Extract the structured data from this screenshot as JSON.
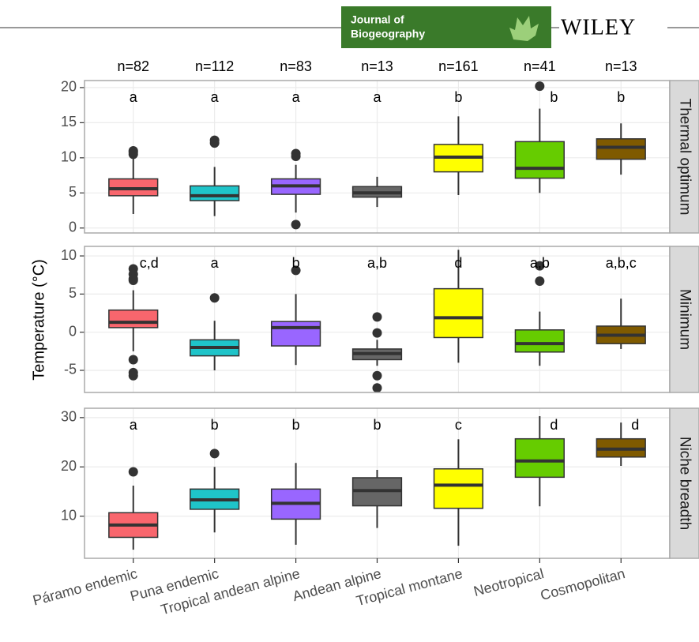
{
  "header": {
    "journal": [
      "Journal of",
      "Biogeography"
    ],
    "publisher": "WILEY"
  },
  "y_label": "Temperature (°C)",
  "chart_data": [
    {
      "type": "box",
      "facet": "Thermal optimum",
      "ylim": [
        -0.7,
        21
      ],
      "yticks": [
        0,
        5,
        10,
        15,
        20
      ],
      "grid": true,
      "n_labels": [
        "n=82",
        "n=112",
        "n=83",
        "n=13",
        "n=161",
        "n=41",
        "n=13"
      ],
      "group_letters": [
        "a",
        "a",
        "a",
        "a",
        "b",
        "b",
        "b"
      ],
      "boxes": [
        {
          "color": "#f8666d",
          "min": 2.0,
          "q1": 4.6,
          "median": 5.6,
          "q3": 7.0,
          "max": 10.0,
          "outliers": [
            10.5,
            11.0,
            10.8
          ]
        },
        {
          "color": "#1fc4c9",
          "min": 1.7,
          "q1": 3.9,
          "median": 4.6,
          "q3": 6.0,
          "max": 8.7,
          "outliers": [
            12.1,
            12.5
          ]
        },
        {
          "color": "#9966ff",
          "min": 2.2,
          "q1": 4.8,
          "median": 6.0,
          "q3": 7.0,
          "max": 9.0,
          "outliers": [
            0.5,
            10.2,
            10.6
          ]
        },
        {
          "color": "#666666",
          "min": 3.0,
          "q1": 4.4,
          "median": 5.0,
          "q3": 5.9,
          "max": 7.3,
          "outliers": []
        },
        {
          "color": "#ffff00",
          "min": 4.7,
          "q1": 8.0,
          "median": 10.1,
          "q3": 11.9,
          "max": 15.9,
          "outliers": []
        },
        {
          "color": "#66cc00",
          "min": 5.0,
          "q1": 7.1,
          "median": 8.5,
          "q3": 12.3,
          "max": 17.0,
          "outliers": [
            20.2
          ]
        },
        {
          "color": "#7f5a00",
          "min": 7.6,
          "q1": 9.8,
          "median": 11.5,
          "q3": 12.7,
          "max": 14.9,
          "outliers": []
        }
      ]
    },
    {
      "type": "box",
      "facet": "Minimum",
      "ylim": [
        -7.9,
        11.25
      ],
      "yticks": [
        -5,
        0,
        5,
        10
      ],
      "grid": true,
      "group_letters": [
        "c,d",
        "a",
        "b",
        "a,b",
        "d",
        "a,b",
        "a,b,c"
      ],
      "boxes": [
        {
          "color": "#f8666d",
          "min": -2.5,
          "q1": 0.6,
          "median": 1.3,
          "q3": 2.9,
          "max": 5.5,
          "outliers": [
            8.3,
            7.6,
            7.0,
            6.8,
            -3.6,
            -5.3,
            -5.7
          ]
        },
        {
          "color": "#1fc4c9",
          "min": -5.0,
          "q1": -3.1,
          "median": -2.0,
          "q3": -1.0,
          "max": 1.5,
          "outliers": [
            4.5
          ]
        },
        {
          "color": "#9966ff",
          "min": -4.3,
          "q1": -1.8,
          "median": 0.6,
          "q3": 1.4,
          "max": 5.0,
          "outliers": [
            8.1
          ]
        },
        {
          "color": "#666666",
          "min": -4.4,
          "q1": -3.6,
          "median": -2.8,
          "q3": -2.2,
          "max": -1.0,
          "outliers": [
            2.0,
            -0.1,
            -5.7,
            -7.3
          ]
        },
        {
          "color": "#ffff00",
          "min": -4.0,
          "q1": -0.7,
          "median": 1.9,
          "q3": 5.7,
          "max": 10.8,
          "outliers": []
        },
        {
          "color": "#66cc00",
          "min": -4.4,
          "q1": -2.6,
          "median": -1.5,
          "q3": 0.3,
          "max": 2.7,
          "outliers": [
            6.7,
            8.7
          ]
        },
        {
          "color": "#7f5a00",
          "min": -2.2,
          "q1": -1.5,
          "median": -0.4,
          "q3": 0.8,
          "max": 4.4,
          "outliers": []
        }
      ]
    },
    {
      "type": "box",
      "facet": "Niche breadth",
      "ylim": [
        1.45,
        31.9
      ],
      "yticks": [
        10,
        20,
        30
      ],
      "grid": true,
      "group_letters": [
        "a",
        "b",
        "b",
        "b",
        "c",
        "d",
        "d"
      ],
      "categories": [
        "Páramo endemic",
        "Puna endemic",
        "Tropical andean alpine",
        "Andean alpine",
        "Tropical montane",
        "Neotropical",
        "Cosmopolitan"
      ],
      "boxes": [
        {
          "color": "#f8666d",
          "min": 3.2,
          "q1": 5.7,
          "median": 8.2,
          "q3": 10.7,
          "max": 16.2,
          "outliers": [
            19.0
          ]
        },
        {
          "color": "#1fc4c9",
          "min": 6.7,
          "q1": 11.4,
          "median": 13.3,
          "q3": 15.5,
          "max": 20.0,
          "outliers": [
            22.7
          ]
        },
        {
          "color": "#9966ff",
          "min": 4.2,
          "q1": 9.4,
          "median": 12.6,
          "q3": 15.5,
          "max": 20.8,
          "outliers": []
        },
        {
          "color": "#666666",
          "min": 7.6,
          "q1": 12.1,
          "median": 15.2,
          "q3": 17.8,
          "max": 19.4,
          "outliers": []
        },
        {
          "color": "#ffff00",
          "min": 4.0,
          "q1": 11.6,
          "median": 16.3,
          "q3": 19.6,
          "max": 25.6,
          "outliers": []
        },
        {
          "color": "#66cc00",
          "min": 12.0,
          "q1": 17.9,
          "median": 21.2,
          "q3": 25.7,
          "max": 30.3,
          "outliers": []
        },
        {
          "color": "#7f5a00",
          "min": 20.2,
          "q1": 22.0,
          "median": 23.6,
          "q3": 25.7,
          "max": 29.0,
          "outliers": []
        }
      ]
    }
  ]
}
